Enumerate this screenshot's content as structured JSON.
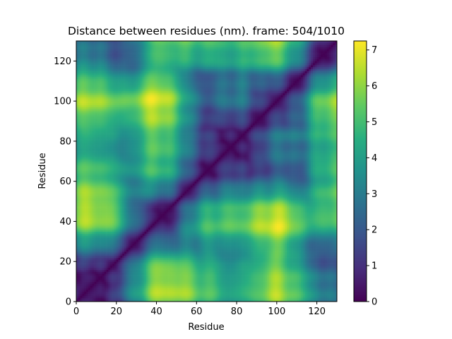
{
  "chart_data": {
    "type": "heatmap",
    "title": "Distance between residues (nm). frame: 504/1010",
    "xlabel": "Residue",
    "ylabel": "Residue",
    "xlim": [
      0,
      130
    ],
    "ylim": [
      0,
      130
    ],
    "xticks": [
      0,
      20,
      40,
      60,
      80,
      100,
      120
    ],
    "yticks": [
      0,
      20,
      40,
      60,
      80,
      100,
      120
    ],
    "n_residues": 130,
    "colormap": "viridis",
    "colorbar": {
      "min": 0,
      "max": 7.25,
      "ticks": [
        0,
        1,
        2,
        3,
        4,
        5,
        6,
        7
      ]
    },
    "diagonal_value": 0,
    "pattern": {
      "description_points": [
        {
          "x": 30,
          "y": 100,
          "value": 7.0
        },
        {
          "x": 100,
          "y": 30,
          "value": 7.0
        },
        {
          "x": 45,
          "y": 100,
          "value": 6.0
        },
        {
          "x": 100,
          "y": 45,
          "value": 6.0
        },
        {
          "x": 95,
          "y": 2,
          "value": 6.2
        },
        {
          "x": 2,
          "y": 95,
          "value": 6.2
        },
        {
          "x": 60,
          "y": 60,
          "value": 0.0
        },
        {
          "x": 120,
          "y": 120,
          "value": 0.0
        }
      ]
    }
  }
}
